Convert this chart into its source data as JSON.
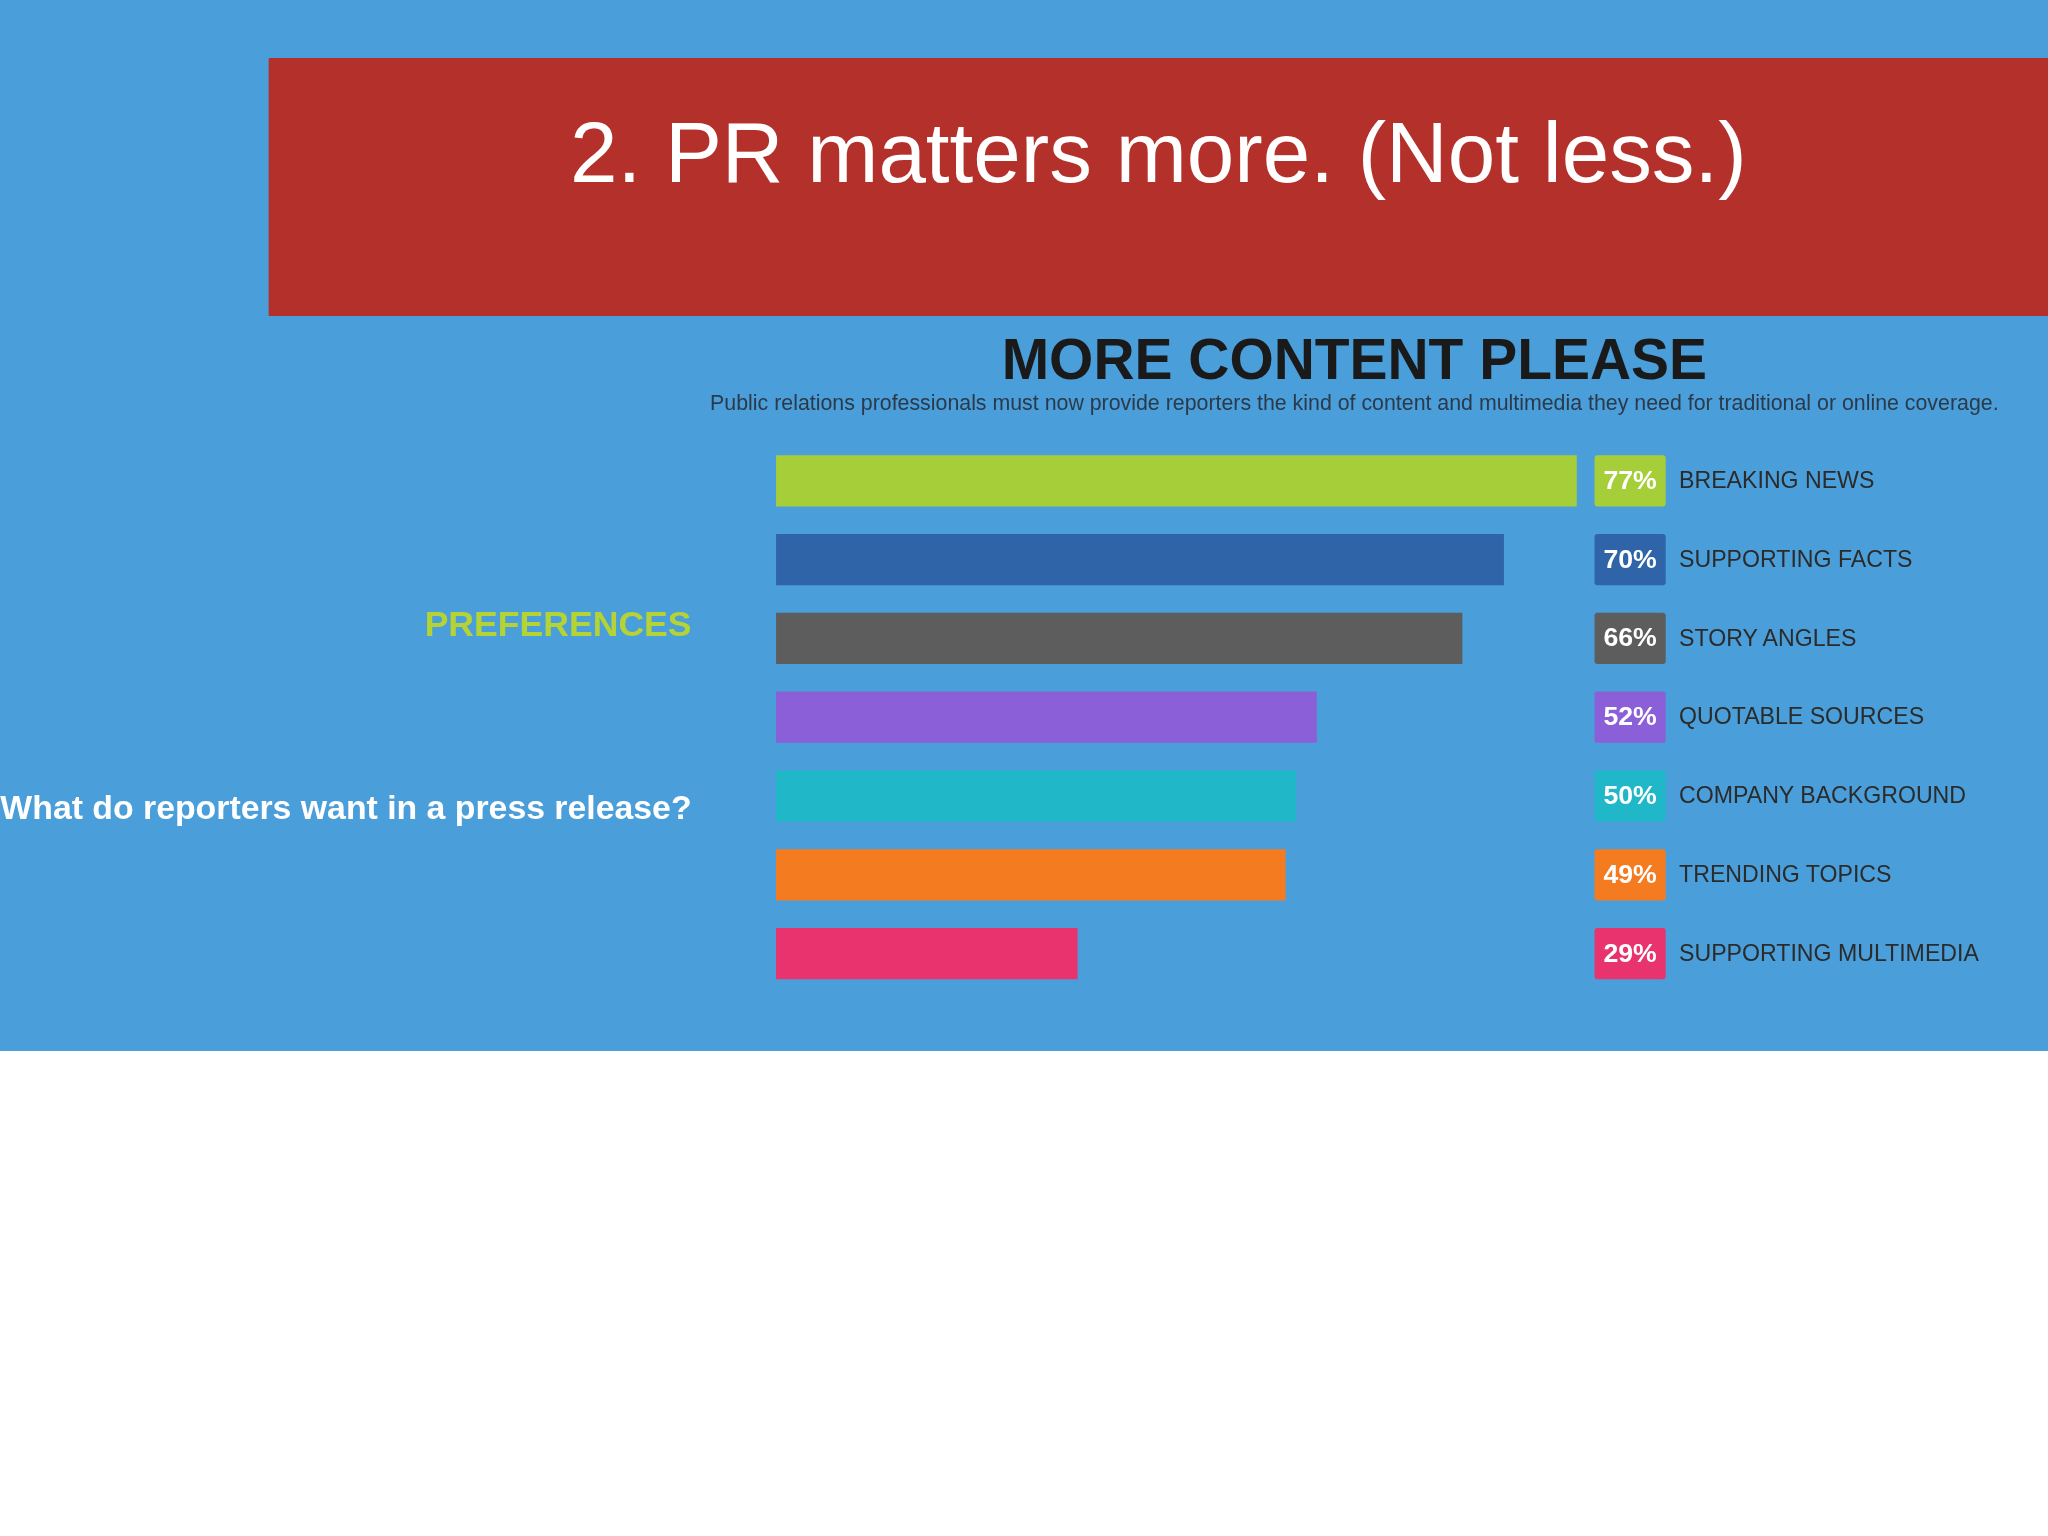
{
  "chart_data": {
    "type": "bar",
    "orientation": "horizontal",
    "title": "2. PR matters more. (Not less.)",
    "subtitle": "MORE CONTENT PLEASE",
    "annotations": [
      "Public relations professionals must now provide reporters the kind of content and multimedia they need for traditional or online coverage.",
      "PREFERENCES",
      "What do reporters want in a press release?"
    ],
    "categories": [
      "BREAKING NEWS",
      "SUPPORTING FACTS",
      "STORY ANGLES",
      "QUOTABLE SOURCES",
      "COMPANY BACKGROUND",
      "TRENDING TOPICS",
      "SUPPORTING MULTIMEDIA"
    ],
    "values": [
      77,
      70,
      66,
      52,
      50,
      49,
      29
    ],
    "value_labels": [
      "77%",
      "70%",
      "66%",
      "52%",
      "50%",
      "49%",
      "29%"
    ],
    "colors": [
      "#a6ce39",
      "#2f64a8",
      "#5d5d5d",
      "#8a5fd8",
      "#20b8c8",
      "#f47b20",
      "#e8336e"
    ]
  }
}
